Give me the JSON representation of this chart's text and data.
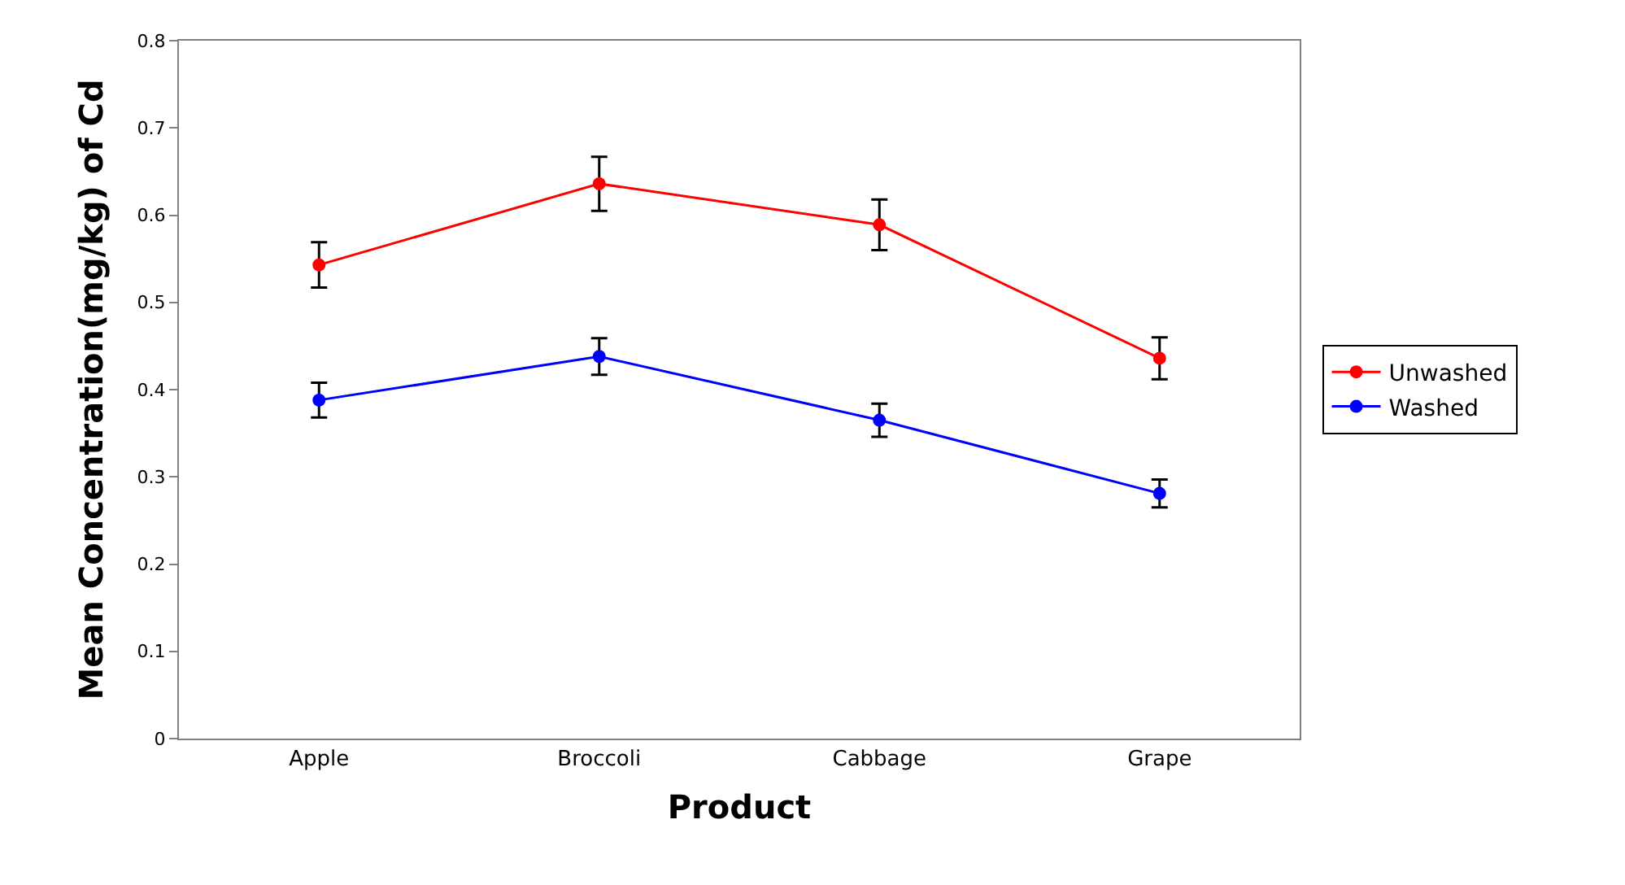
{
  "chart_data": {
    "type": "line",
    "xlabel": "Product",
    "ylabel": "Mean Concentration(mg/kg) of Cd",
    "categories": [
      "Apple",
      "Broccoli",
      "Cabbage",
      "Grape"
    ],
    "series": [
      {
        "name": "Unwashed",
        "color": "#ff0000",
        "values": [
          0.543,
          0.636,
          0.589,
          0.436
        ],
        "errors": [
          0.026,
          0.031,
          0.029,
          0.024
        ]
      },
      {
        "name": "Washed",
        "color": "#0000ff",
        "values": [
          0.388,
          0.438,
          0.365,
          0.281
        ],
        "errors": [
          0.02,
          0.021,
          0.019,
          0.016
        ]
      }
    ],
    "ylim": [
      0,
      0.8
    ],
    "yticks": [
      0,
      0.1,
      0.2,
      0.3,
      0.4,
      0.5,
      0.6,
      0.7,
      0.8
    ],
    "legend": "right",
    "marker": "circle",
    "line_style": "solid"
  }
}
